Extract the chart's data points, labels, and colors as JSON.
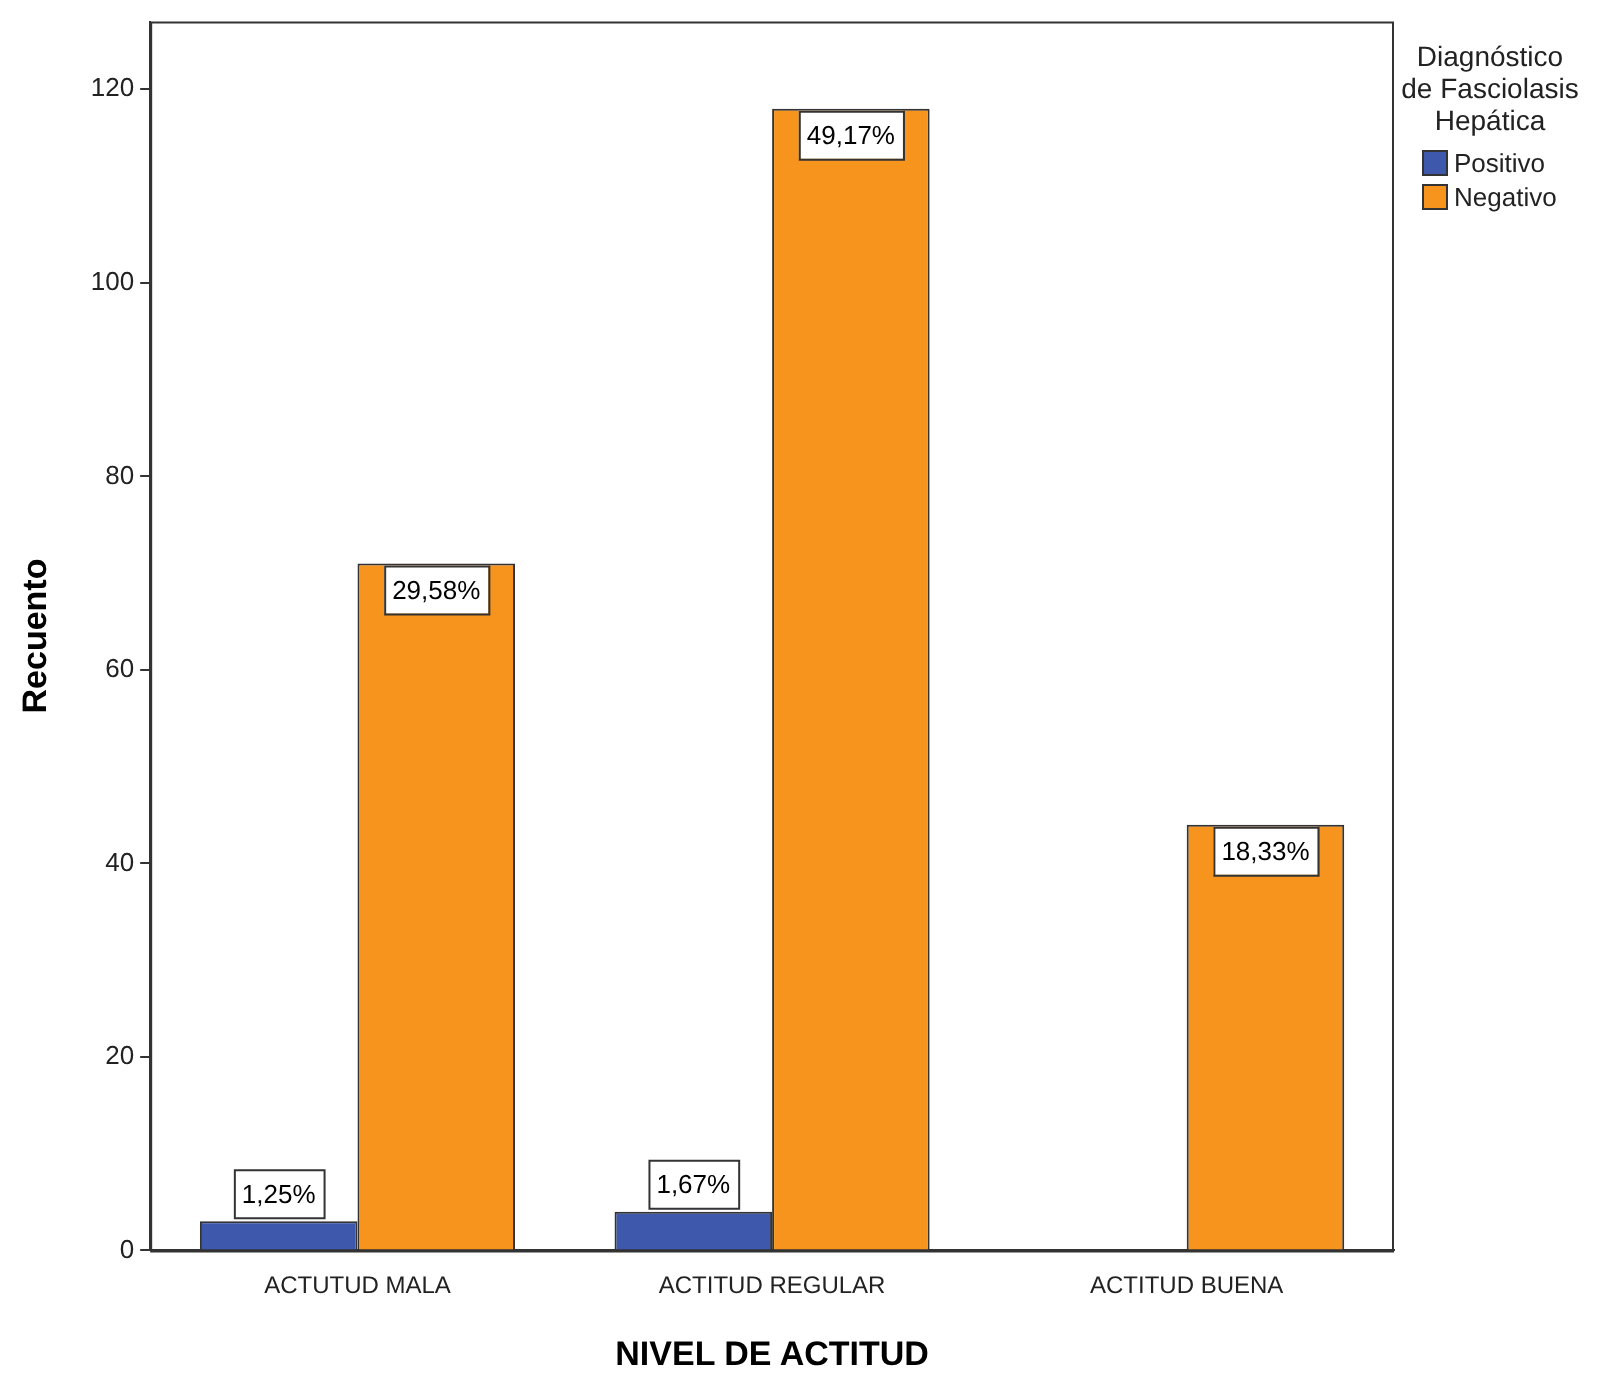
{
  "chart_data": {
    "type": "bar",
    "xlabel": "NIVEL DE ACTITUD",
    "ylabel": "Recuento",
    "legend_title": "Diagnóstico de Fasciolasis Hepática",
    "categories": [
      "ACTUTUD MALA",
      "ACTITUD REGULAR",
      "ACTITUD BUENA"
    ],
    "series": [
      {
        "name": "Positivo",
        "color": "#3e58ac",
        "values": [
          3,
          4,
          null
        ]
      },
      {
        "name": "Negativo",
        "color": "#f7941d",
        "values": [
          71,
          118,
          44
        ]
      }
    ],
    "annotations": [
      {
        "text": "1,25%",
        "x": "ACTUTUD MALA",
        "y": 3
      },
      {
        "text": "29,58%",
        "x": "ACTUTUD MALA",
        "y": 71
      },
      {
        "text": "1,67%",
        "x": "ACTITUD REGULAR",
        "y": 4
      },
      {
        "text": "49,17%",
        "x": "ACTITUD REGULAR",
        "y": 118
      },
      {
        "text": "18,33%",
        "x": "ACTITUD BUENA",
        "y": 44
      }
    ],
    "ylim": [
      0,
      127
    ],
    "yticks": [
      0,
      20,
      40,
      60,
      80,
      100,
      120
    ],
    "grid": false,
    "legend": "top right"
  }
}
